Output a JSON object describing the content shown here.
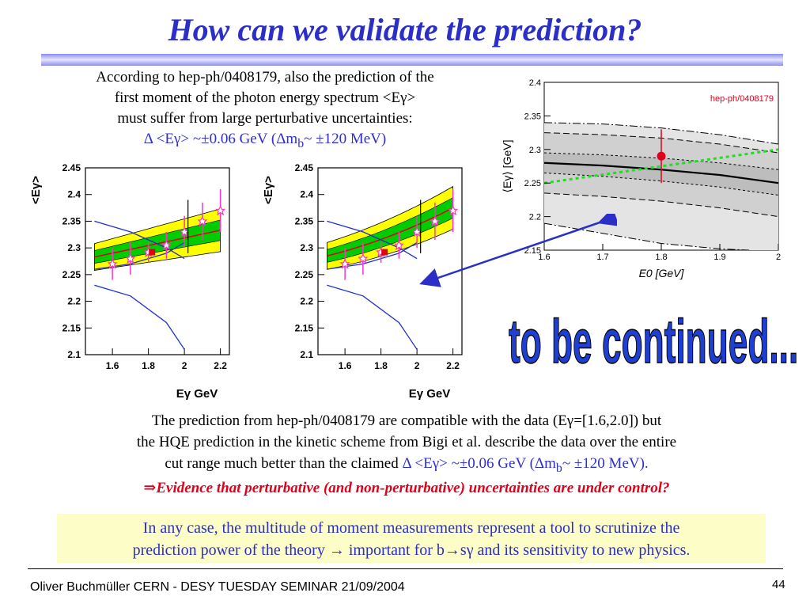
{
  "slide": {
    "title": "How can we validate the prediction?",
    "intro_line1": "According to hep-ph/0408179, also the prediction of the",
    "intro_line2": "first moment of the photon energy spectrum <Eγ>",
    "intro_line3": "must suffer from large perturbative uncertainties:",
    "intro_blue_a": "Δ <Eγ> ~±0.06 GeV (Δm",
    "intro_blue_sub": "b",
    "intro_blue_b": "~ ±120 MeV)",
    "body_line1": "The prediction from hep-ph/0408179 are compatible with the data (Eγ=[1.6,2.0]) but",
    "body_line2": "the HQE prediction in the kinetic scheme from Bigi et al. describe the data over the entire",
    "body_line3_black": "cut range much better than the claimed ",
    "body_line3_blue_a": "Δ <Eγ> ~±0.06 GeV (Δm",
    "body_line3_blue_sub": "b",
    "body_line3_blue_b": "~ ±120 MeV).",
    "evidence": "⇒Evidence that perturbative (and non-perturbative) uncertainties are under control?",
    "box_line1": "In any case, the multitude of moment measurements represent a tool to scrutinize the",
    "box_line2": "prediction power of the theory → important for b→sγ and its sensitivity to new physics.",
    "to_be_continued": "to be continued...",
    "footer": "Oliver Buchmüller CERN - DESY TUESDAY SEMINAR 21/09/2004",
    "page_number": "44"
  },
  "colors": {
    "title_blue": "#2b2fc8",
    "red": "#e0001a",
    "band_yellow": "#ffff00",
    "band_green": "#00cc00",
    "curve_blue": "#1f2fd0",
    "data_magenta": "#ff33cc",
    "grey_band": "#d9d9d9",
    "green_dotted": "#22dd22"
  },
  "chart_data": [
    {
      "type": "line",
      "title": "",
      "xlabel": "Eγ GeV",
      "ylabel": "<Eγ>",
      "xlim": [
        1.45,
        2.25
      ],
      "ylim": [
        2.1,
        2.45
      ],
      "xticks": [
        "1.6",
        "1.8",
        "2",
        "2.2"
      ],
      "yticks": [
        "2.1",
        "2.15",
        "2.2",
        "2.25",
        "2.3",
        "2.35",
        "2.4",
        "2.45"
      ],
      "bands": {
        "x": [
          1.5,
          2.2
        ],
        "center": [
          2.283,
          2.333
        ],
        "green_halfwidth": 0.012,
        "yellow_halfwidth": 0.025
      },
      "blue_curves": [
        {
          "x": [
            1.5,
            1.7,
            1.9,
            2.0
          ],
          "y": [
            2.35,
            2.33,
            2.3,
            2.28
          ]
        },
        {
          "x": [
            1.5,
            1.7,
            1.9,
            2.0
          ],
          "y": [
            2.26,
            2.27,
            2.29,
            2.31
          ]
        },
        {
          "x": [
            1.5,
            1.7,
            1.9,
            2.0
          ],
          "y": [
            2.23,
            2.21,
            2.16,
            2.11
          ]
        }
      ],
      "points": [
        {
          "x": 1.6,
          "y": 2.27,
          "err": 0.03
        },
        {
          "x": 1.7,
          "y": 2.28,
          "err": 0.03
        },
        {
          "x": 1.8,
          "y": 2.292,
          "err": 0.02
        },
        {
          "x": 1.9,
          "y": 2.305,
          "err": 0.025
        },
        {
          "x": 2.0,
          "y": 2.33,
          "err": 0.03
        },
        {
          "x": 2.1,
          "y": 2.35,
          "err": 0.035
        },
        {
          "x": 2.2,
          "y": 2.37,
          "err": 0.04
        }
      ]
    },
    {
      "type": "line",
      "title": "",
      "xlabel": "Eγ GeV",
      "ylabel": "<Eγ>",
      "xlim": [
        1.45,
        2.25
      ],
      "ylim": [
        2.1,
        2.45
      ],
      "xticks": [
        "1.6",
        "1.8",
        "2",
        "2.2"
      ],
      "yticks": [
        "2.1",
        "2.15",
        "2.2",
        "2.25",
        "2.3",
        "2.35",
        "2.4",
        "2.45"
      ],
      "bands": {
        "x": [
          1.5,
          2.2
        ],
        "center": [
          2.285,
          2.375
        ],
        "green_halfwidth": 0.012,
        "yellow_halfwidth": 0.025,
        "curvature": 1
      },
      "blue_curves": [
        {
          "x": [
            1.5,
            1.7,
            1.9,
            2.0
          ],
          "y": [
            2.35,
            2.33,
            2.3,
            2.28
          ]
        },
        {
          "x": [
            1.5,
            1.7,
            1.9,
            2.0
          ],
          "y": [
            2.26,
            2.27,
            2.29,
            2.31
          ]
        },
        {
          "x": [
            1.5,
            1.7,
            1.9,
            2.0
          ],
          "y": [
            2.23,
            2.21,
            2.16,
            2.11
          ]
        }
      ],
      "points": [
        {
          "x": 1.6,
          "y": 2.27,
          "err": 0.03
        },
        {
          "x": 1.7,
          "y": 2.28,
          "err": 0.03
        },
        {
          "x": 1.8,
          "y": 2.292,
          "err": 0.02
        },
        {
          "x": 1.9,
          "y": 2.305,
          "err": 0.025
        },
        {
          "x": 2.0,
          "y": 2.33,
          "err": 0.03
        },
        {
          "x": 2.1,
          "y": 2.35,
          "err": 0.035
        },
        {
          "x": 2.2,
          "y": 2.37,
          "err": 0.04
        }
      ]
    },
    {
      "type": "line",
      "title": "",
      "annotation": "hep-ph/0408179",
      "xlabel": "E0 [GeV]",
      "ylabel": "⟨Eγ⟩ [GeV]",
      "xlim": [
        1.6,
        2.0
      ],
      "ylim": [
        2.15,
        2.4
      ],
      "xticks": [
        "1.6",
        "1.7",
        "1.8",
        "1.9",
        "2"
      ],
      "yticks": [
        "2.15",
        "2.2",
        "2.25",
        "2.3",
        "2.35",
        "2.4"
      ],
      "central": {
        "x": [
          1.6,
          1.7,
          1.8,
          1.9,
          2.0
        ],
        "y": [
          2.28,
          2.276,
          2.27,
          2.262,
          2.25
        ]
      },
      "inner_band": {
        "x": [
          1.6,
          1.7,
          1.8,
          1.9,
          2.0
        ],
        "upper": [
          2.295,
          2.292,
          2.287,
          2.28,
          2.27
        ],
        "lower": [
          2.265,
          2.26,
          2.253,
          2.244,
          2.232
        ]
      },
      "outer_band": {
        "x": [
          1.6,
          1.7,
          1.8,
          1.9,
          2.0
        ],
        "upper": [
          2.325,
          2.322,
          2.317,
          2.308,
          2.295
        ],
        "lower": [
          2.235,
          2.23,
          2.223,
          2.213,
          2.2
        ]
      },
      "dash_dot_upper": {
        "x": [
          1.6,
          1.7,
          1.8,
          1.9,
          2.0
        ],
        "y": [
          2.34,
          2.338,
          2.332,
          2.322,
          2.308
        ]
      },
      "dash_dot_lower": {
        "x": [
          1.6,
          1.7,
          1.8,
          1.9,
          1.95
        ],
        "y": [
          2.19,
          2.175,
          2.16,
          2.152,
          2.15
        ]
      },
      "green_dotted": {
        "x": [
          1.6,
          2.0
        ],
        "y": [
          2.25,
          2.3
        ]
      },
      "point": {
        "x": 1.8,
        "y": 2.29,
        "err": 0.04
      }
    }
  ]
}
